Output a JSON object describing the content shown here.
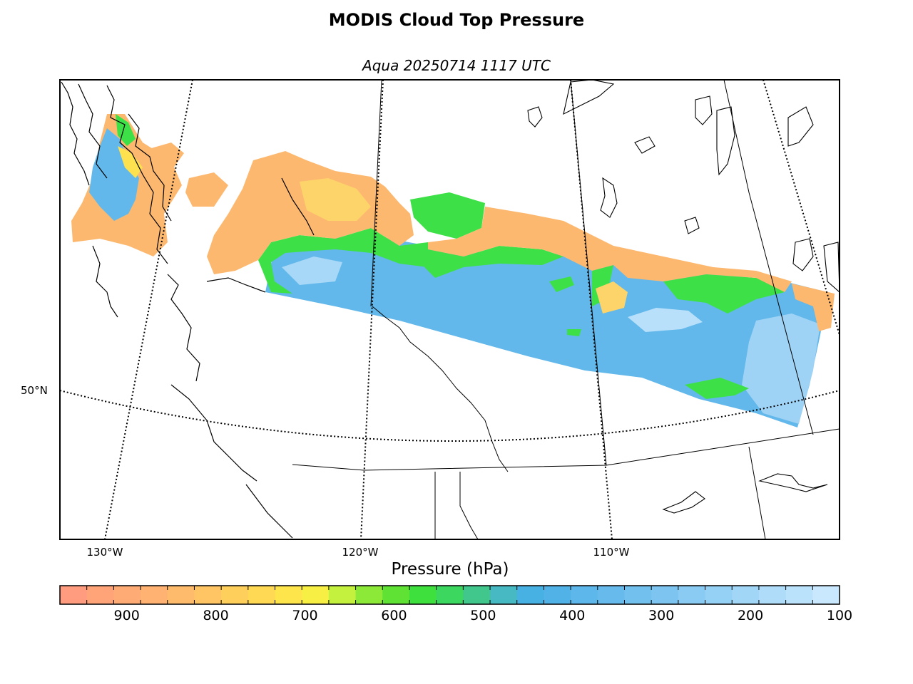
{
  "title": "MODIS Cloud Top Pressure",
  "subtitle": "Aqua 20250714 1117 UTC",
  "map": {
    "lon_labels": [
      "130°W",
      "120°W",
      "110°W"
    ],
    "lat_labels": [
      "50°N"
    ],
    "colors": {
      "high_cloud": "#62b8ea",
      "mid_cloud": "#3ee048",
      "low_cloud": "#fdb870",
      "coast": "#000000"
    }
  },
  "colorbar": {
    "label": "Pressure (hPa)",
    "range": [
      975,
      100
    ],
    "ticks": [
      "900",
      "800",
      "700",
      "600",
      "500",
      "400",
      "300",
      "200",
      "100"
    ],
    "tick_values": [
      900,
      800,
      700,
      600,
      500,
      400,
      300,
      200,
      100
    ],
    "colors": [
      "#ff9b7e",
      "#ffa379",
      "#ffab75",
      "#ffb271",
      "#ffbb6c",
      "#ffc564",
      "#ffcf5c",
      "#ffd954",
      "#fee54c",
      "#f8ef45",
      "#c4f03e",
      "#8ce938",
      "#5fe233",
      "#3ee03e",
      "#3bd75e",
      "#41c68c",
      "#47b9c2",
      "#48b1e3",
      "#51b2e8",
      "#5db7ea",
      "#67bbec",
      "#72c0ee",
      "#7dc5f0",
      "#89cbf2",
      "#95d0f5",
      "#a2d6f7",
      "#aedcf9",
      "#bbe2fb",
      "#c9e8fd"
    ]
  }
}
